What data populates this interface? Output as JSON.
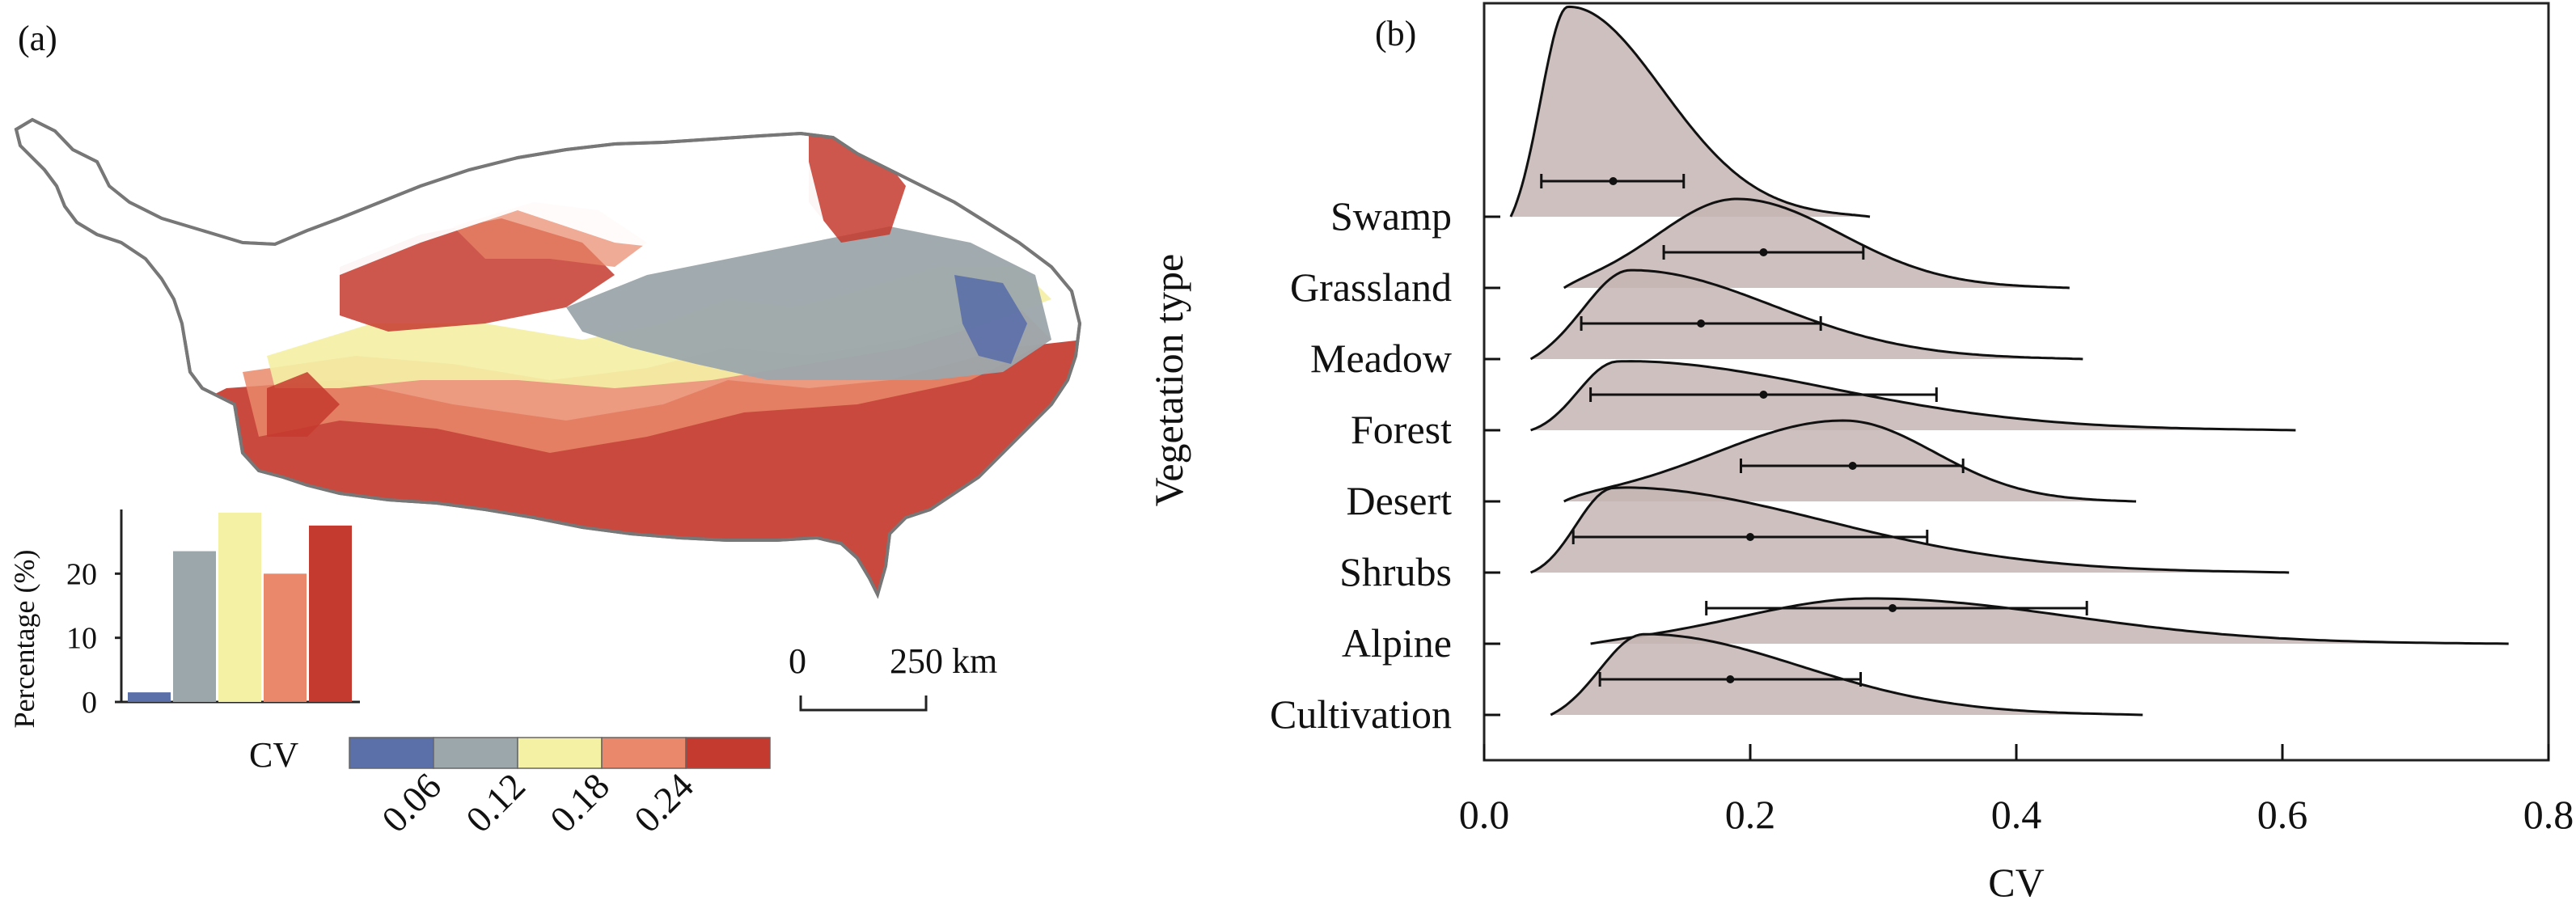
{
  "panel_a": {
    "label": "(a)",
    "scalebar": {
      "zero": "0",
      "distance": "250 km"
    },
    "inset": {
      "ylabel": "Percentage (%)",
      "yticks": [
        "0",
        "10",
        "20"
      ]
    },
    "legend": {
      "title": "CV",
      "ticks": [
        "0.06",
        "0.12",
        "0.18",
        "0.24"
      ]
    }
  },
  "panel_b": {
    "label": "(b)"
  },
  "colors": {
    "cv_classes": [
      "#5b6fa8",
      "#9ca7ab",
      "#f4f0a4",
      "#e9886a",
      "#c53a2e"
    ],
    "ridge_fill": "#c5b5b3",
    "map_outline": "#777777"
  },
  "chart_data": [
    {
      "type": "bar",
      "title": "",
      "xlabel": "CV",
      "ylabel": "Percentage (%)",
      "categories": [
        "<0.06",
        "0.06-0.12",
        "0.12-0.18",
        "0.18-0.24",
        ">0.24"
      ],
      "values": [
        1.5,
        23.5,
        29.5,
        20,
        27.5
      ],
      "ylim": [
        0,
        30
      ],
      "yticks": [
        0,
        10,
        20
      ]
    },
    {
      "type": "area",
      "title": "",
      "xlabel": "CV",
      "ylabel": "Vegetation type",
      "xlim": [
        0,
        0.8
      ],
      "xticks": [
        0.0,
        0.2,
        0.4,
        0.6,
        0.8
      ],
      "xtick_labels": [
        "0.0",
        "0.2",
        "0.4",
        "0.6",
        "0.8"
      ],
      "grid": false,
      "series": [
        {
          "name": "Swamp",
          "mean": 0.097,
          "error_low": 0.043,
          "error_high": 0.15,
          "peak": 0.063,
          "range": [
            0.02,
            0.29
          ]
        },
        {
          "name": "Grassland",
          "mean": 0.21,
          "error_low": 0.135,
          "error_high": 0.285,
          "peak": 0.19,
          "range": [
            0.06,
            0.44
          ]
        },
        {
          "name": "Meadow",
          "mean": 0.163,
          "error_low": 0.073,
          "error_high": 0.253,
          "peak": 0.11,
          "range": [
            0.035,
            0.45
          ]
        },
        {
          "name": "Forest",
          "mean": 0.21,
          "error_low": 0.08,
          "error_high": 0.34,
          "peak": 0.1,
          "range": [
            0.035,
            0.61
          ]
        },
        {
          "name": "Desert",
          "mean": 0.277,
          "error_low": 0.193,
          "error_high": 0.36,
          "peak": 0.27,
          "range": [
            0.06,
            0.49
          ]
        },
        {
          "name": "Shrubs",
          "mean": 0.2,
          "error_low": 0.067,
          "error_high": 0.333,
          "peak": 0.097,
          "range": [
            0.035,
            0.605
          ]
        },
        {
          "name": "Alpine",
          "mean": 0.307,
          "error_low": 0.167,
          "error_high": 0.453,
          "peak": 0.29,
          "range": [
            0.08,
            0.77
          ]
        },
        {
          "name": "Cultivation",
          "mean": 0.185,
          "error_low": 0.087,
          "error_high": 0.283,
          "peak": 0.12,
          "range": [
            0.05,
            0.495
          ]
        }
      ]
    }
  ]
}
